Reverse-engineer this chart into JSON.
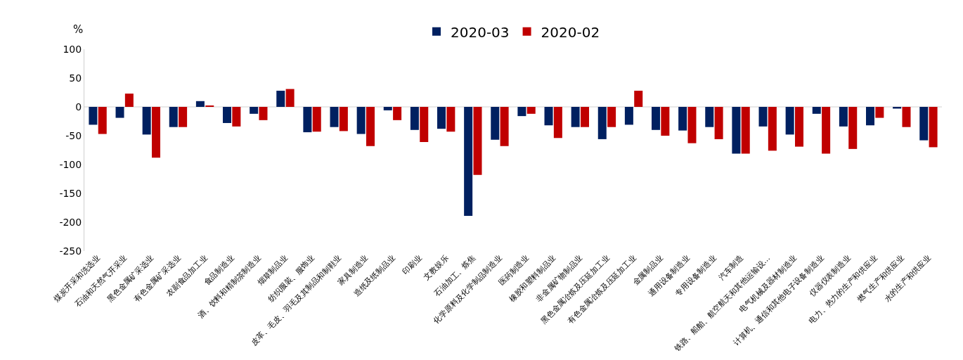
{
  "chart_data": {
    "type": "bar",
    "ylabel": "%",
    "categories": [
      "煤炭开采和洗选业",
      "石油和天然气开采业",
      "黑色金属矿采选业",
      "有色金属矿采选业",
      "农副食品加工业",
      "食品制造业",
      "酒、饮料和精制茶制造业",
      "烟草制品业",
      "纺织服装、服饰业",
      "皮革、毛皮、羽毛及其制品和制鞋业",
      "家具制造业",
      "造纸及纸制品业",
      "印刷业",
      "文教娱乐",
      "石油加工、炼焦",
      "化学原料及化学制品制造业",
      "医药制造业",
      "橡胶和塑料制品业",
      "非金属矿物制品业",
      "黑色金属冶炼及压延加工业",
      "有色金属冶炼及压延加工业",
      "金属制品业",
      "通用设备制造业",
      "专用设备制造业",
      "汽车制造",
      "铁路、船舶、航空航天和其他运输设…",
      "电气机械及器材制造业",
      "计算机、通信和其他电子设备制造业",
      "仪器仪表制造业",
      "电力、热力的生产和供应业",
      "燃气生产和供应业",
      "水的生产和供应业"
    ],
    "series": [
      {
        "name": "2020-03",
        "color": "#002060",
        "values": [
          -31,
          -19,
          -48,
          -35,
          10,
          -28,
          -12,
          28,
          -44,
          -35,
          -47,
          -6,
          -40,
          -38,
          -189,
          -57,
          -16,
          -32,
          -35,
          -56,
          -31,
          -40,
          -41,
          -35,
          -81,
          -34,
          -48,
          -12,
          -34,
          -32,
          -3,
          -58
        ]
      },
      {
        "name": "2020-02",
        "color": "#c00000",
        "values": [
          -47,
          23,
          -88,
          -35,
          2,
          -34,
          -23,
          31,
          -43,
          -42,
          -68,
          -23,
          -61,
          -43,
          -118,
          -68,
          -12,
          -54,
          -35,
          -35,
          28,
          -50,
          -63,
          -56,
          -81,
          -76,
          -69,
          -81,
          -73,
          -19,
          -35,
          -70
        ]
      }
    ],
    "ylim": [
      -250,
      100
    ],
    "yticks": [
      -250,
      -200,
      -150,
      -100,
      -50,
      0,
      50,
      100
    ],
    "grid": false,
    "legend": "top",
    "ref_lines": [
      {
        "axis": "y",
        "value": 0,
        "color": "#d0d0d0"
      }
    ]
  }
}
